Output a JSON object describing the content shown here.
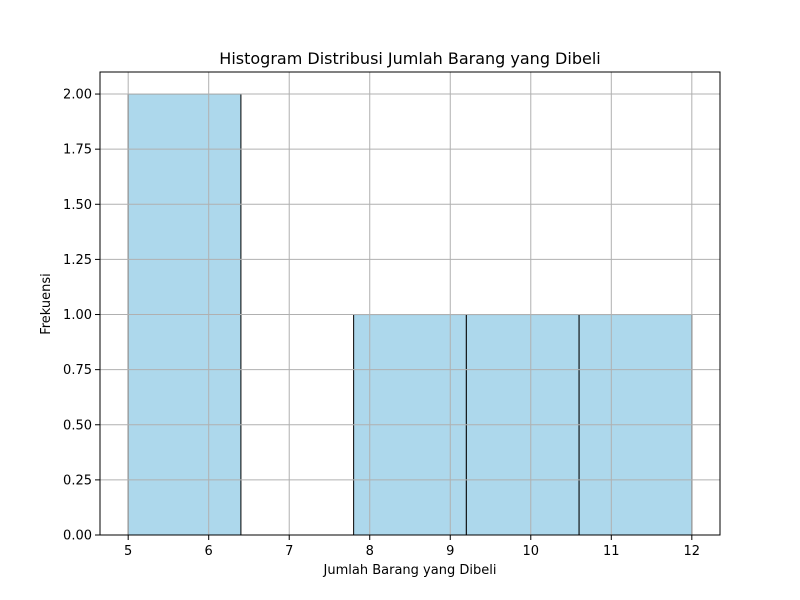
{
  "chart_data": {
    "type": "bar",
    "histogram": true,
    "title": "Histogram Distribusi Jumlah Barang yang Dibeli",
    "xlabel": "Jumlah Barang yang Dibeli",
    "ylabel": "Frekuensi",
    "bins": [
      {
        "start": 5.0,
        "end": 6.4,
        "count": 2
      },
      {
        "start": 6.4,
        "end": 7.8,
        "count": 0
      },
      {
        "start": 7.8,
        "end": 9.2,
        "count": 1
      },
      {
        "start": 9.2,
        "end": 10.6,
        "count": 1
      },
      {
        "start": 10.6,
        "end": 12.0,
        "count": 1
      }
    ],
    "xlim": [
      4.65,
      12.35
    ],
    "ylim": [
      0,
      2.1
    ],
    "xticks": [
      "5",
      "6",
      "7",
      "8",
      "9",
      "10",
      "11",
      "12"
    ],
    "yticks": [
      "0.00",
      "0.25",
      "0.50",
      "0.75",
      "1.00",
      "1.25",
      "1.50",
      "1.75",
      "2.00"
    ],
    "grid": true,
    "bar_color": "#add8ec",
    "edge_color": "#000000",
    "grid_color": "#b0b0b0"
  }
}
